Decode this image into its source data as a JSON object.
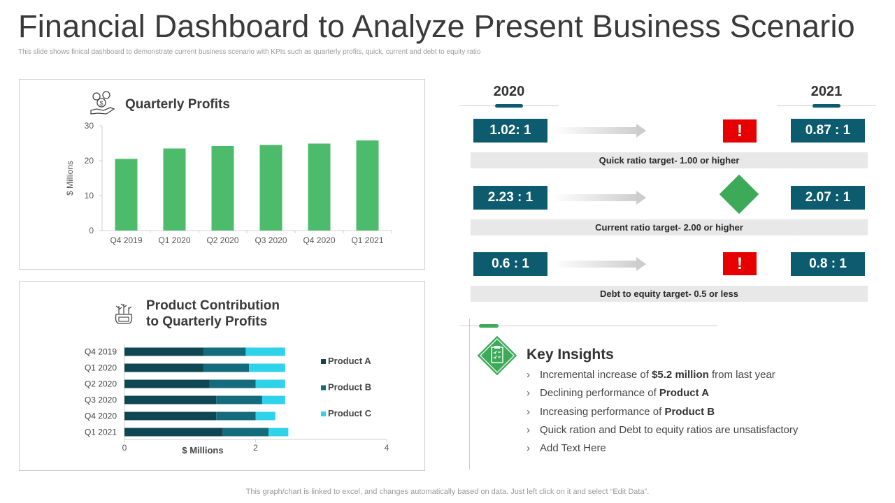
{
  "title": "Financial Dashboard to Analyze Present Business Scenario",
  "subtitle": "This slide shows finical dashboard to demonstrate current business scenario with KPIs such as quarterly profits, quick, current and debt to equity ratio",
  "footer": "This graph/chart is linked to excel, and changes automatically based on data. Just left click on it and select “Edit Data”.",
  "colors": {
    "bar_green": "#4dbb6c",
    "teal_dark": "#0c5b6e",
    "product_a": "#0f4654",
    "product_b": "#146b7c",
    "product_c": "#2ed3eb",
    "alert_red": "#e60000",
    "diamond_green": "#3daa5a"
  },
  "quarterly": {
    "title": "Quarterly Profits",
    "icon": "money-hand-icon"
  },
  "product": {
    "title_line1": "Product Contribution",
    "title_line2": "to Quarterly Profits",
    "icon": "money-bag-plants-icon"
  },
  "chart_data": [
    {
      "type": "bar",
      "title": "Quarterly Profits",
      "categories": [
        "Q4 2019",
        "Q1 2020",
        "Q2 2020",
        "Q3 2020",
        "Q4 2020",
        "Q1 2021"
      ],
      "values": [
        20.5,
        23.5,
        24.2,
        24.5,
        24.9,
        25.8
      ],
      "xlabel": "",
      "ylabel": "$ Millions",
      "ylim": [
        0,
        30
      ],
      "yticks": [
        "0",
        "10",
        "20",
        "30"
      ]
    },
    {
      "type": "bar",
      "orientation": "horizontal-stacked",
      "title": "Product Contribution to Quarterly Profits",
      "categories": [
        "Q4 2019",
        "Q1 2020",
        "Q2 2020",
        "Q3 2020",
        "Q4 2020",
        "Q1 2021"
      ],
      "series": [
        {
          "name": "Product A",
          "values": [
            1.2,
            1.2,
            1.3,
            1.4,
            1.4,
            1.5
          ]
        },
        {
          "name": "Product B",
          "values": [
            0.65,
            0.7,
            0.7,
            0.7,
            0.6,
            0.7
          ]
        },
        {
          "name": "Product C",
          "values": [
            0.6,
            0.55,
            0.45,
            0.35,
            0.3,
            0.3
          ]
        }
      ],
      "xlabel": "$ Millions",
      "xlim": [
        0,
        4
      ],
      "xticks": [
        "0",
        "2",
        "4"
      ]
    }
  ],
  "ratios": {
    "year_left": "2020",
    "year_right": "2021",
    "rows": [
      {
        "left": "1.02: 1",
        "right": "0.87 : 1",
        "target": "Quick ratio target- 1.00 or higher",
        "status": "alert"
      },
      {
        "left": "2.23 : 1",
        "right": "2.07 : 1",
        "target": "Current ratio target- 2.00 or higher",
        "status": "ok"
      },
      {
        "left": "0.6 : 1",
        "right": "0.8 : 1",
        "target": "Debt to equity target- 0.5 or less",
        "status": "alert"
      }
    ],
    "alert_symbol": "!"
  },
  "insights": {
    "title": "Key Insights",
    "bullet": "›",
    "items": [
      {
        "pre": "Incremental increase of ",
        "bold": "$5.2 million",
        "post": " from last year"
      },
      {
        "pre": "Declining performance of ",
        "bold": "Product A",
        "post": ""
      },
      {
        "pre": "Increasing performance of ",
        "bold": "Product B",
        "post": ""
      },
      {
        "pre": "Quick ration and Debt to equity ratios are unsatisfactory",
        "bold": "",
        "post": ""
      },
      {
        "pre": "Add Text Here",
        "bold": "",
        "post": ""
      }
    ]
  }
}
